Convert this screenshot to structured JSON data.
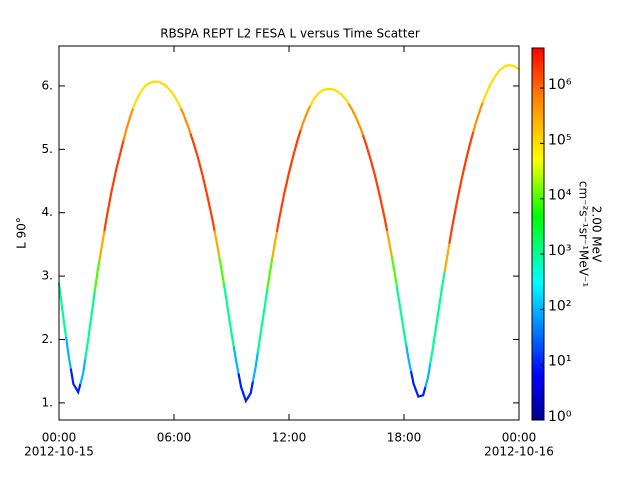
{
  "chart_data": {
    "type": "scatter",
    "title": "RBSPA REPT L2 FESA L versus Time Scatter",
    "y_label": "L 90°",
    "colorbar_label": [
      "2.00 MeV",
      "cm⁻²s⁻¹sr⁻¹MeV⁻¹"
    ],
    "x": [
      0,
      0.25,
      0.5,
      0.75,
      1,
      1.25,
      1.5,
      1.75,
      2,
      2.25,
      2.5,
      2.75,
      3,
      3.25,
      3.5,
      3.75,
      4,
      4.25,
      4.5,
      4.75,
      5,
      5.25,
      5.5,
      5.75,
      6,
      6.25,
      6.5,
      6.75,
      7,
      7.25,
      7.5,
      7.75,
      8,
      8.25,
      8.5,
      8.75,
      9,
      9.25,
      9.5,
      9.75,
      10,
      10.25,
      10.5,
      10.75,
      11,
      11.25,
      11.5,
      11.75,
      12,
      12.25,
      12.5,
      12.75,
      13,
      13.25,
      13.5,
      13.75,
      14,
      14.25,
      14.5,
      14.75,
      15,
      15.25,
      15.5,
      15.75,
      16,
      16.25,
      16.5,
      16.75,
      17,
      17.25,
      17.5,
      17.75,
      18,
      18.25,
      18.5,
      18.75,
      19,
      19.25,
      19.5,
      19.75,
      20,
      20.25,
      20.5,
      20.75,
      21,
      21.25,
      21.5,
      21.75,
      22,
      22.25,
      22.5,
      22.75,
      23,
      23.25,
      23.5,
      23.75,
      24
    ],
    "values": [
      2.88,
      2.3,
      1.75,
      1.3,
      1.17,
      1.45,
      1.95,
      2.5,
      3.05,
      3.5,
      3.95,
      4.35,
      4.7,
      5.0,
      5.3,
      5.55,
      5.75,
      5.9,
      6.0,
      6.05,
      6.07,
      6.06,
      6.02,
      5.95,
      5.85,
      5.72,
      5.55,
      5.35,
      5.12,
      4.87,
      4.58,
      4.25,
      3.9,
      3.5,
      3.07,
      2.6,
      2.1,
      1.65,
      1.25,
      1.03,
      1.15,
      1.55,
      2.05,
      2.55,
      3.05,
      3.5,
      3.92,
      4.3,
      4.63,
      4.93,
      5.2,
      5.43,
      5.62,
      5.77,
      5.87,
      5.93,
      5.95,
      5.95,
      5.92,
      5.86,
      5.77,
      5.65,
      5.5,
      5.32,
      5.1,
      4.85,
      4.57,
      4.25,
      3.9,
      3.5,
      3.08,
      2.6,
      2.12,
      1.67,
      1.3,
      1.1,
      1.12,
      1.4,
      1.85,
      2.35,
      2.85,
      3.3,
      3.75,
      4.15,
      4.52,
      4.85,
      5.15,
      5.42,
      5.65,
      5.85,
      6.02,
      6.15,
      6.25,
      6.31,
      6.33,
      6.31,
      6.26
    ],
    "z": [
      1000,
      1000,
      100,
      10,
      10,
      100,
      1000,
      1000,
      10000,
      300000,
      2000000,
      2000000,
      2000000,
      2000000,
      500000,
      500000,
      100000,
      100000,
      100000,
      100000,
      100000,
      100000,
      100000,
      100000,
      100000,
      100000,
      500000,
      500000,
      2000000,
      2000000,
      2000000,
      2000000,
      2000000,
      300000,
      10000,
      1000,
      1000,
      100,
      10,
      10,
      10,
      100,
      1000,
      1000,
      10000,
      300000,
      2000000,
      2000000,
      2000000,
      2000000,
      2000000,
      500000,
      500000,
      100000,
      100000,
      100000,
      100000,
      100000,
      100000,
      100000,
      100000,
      500000,
      500000,
      500000,
      2000000,
      2000000,
      2000000,
      2000000,
      2000000,
      300000,
      10000,
      1000,
      1000,
      100,
      10,
      10,
      10,
      100,
      1000,
      1000,
      1000,
      300000,
      2000000,
      2000000,
      2000000,
      2000000,
      2000000,
      500000,
      500000,
      100000,
      100000,
      100000,
      100000,
      100000,
      100000,
      100000,
      100000
    ],
    "xlim": [
      0,
      24
    ],
    "xticks": [
      {
        "value": 0,
        "label": "00:00"
      },
      {
        "value": 6,
        "label": "06:00"
      },
      {
        "value": 12,
        "label": "12:00"
      },
      {
        "value": 18,
        "label": "18:00"
      },
      {
        "value": 24,
        "label": "00:00"
      }
    ],
    "xtick_dates": [
      {
        "value": 0,
        "label": "2012-10-15"
      },
      {
        "value": 24,
        "label": "2012-10-16"
      }
    ],
    "ylim": [
      0.73,
      6.63
    ],
    "yticks": [
      {
        "value": 1,
        "label": "1."
      },
      {
        "value": 2,
        "label": "2."
      },
      {
        "value": 3,
        "label": "3."
      },
      {
        "value": 4,
        "label": "4."
      },
      {
        "value": 5,
        "label": "5."
      },
      {
        "value": 6,
        "label": "6."
      }
    ],
    "zlim": [
      1,
      5300000
    ],
    "zlog": true,
    "zticks": [
      {
        "value": 1,
        "label": "10⁰"
      },
      {
        "value": 10,
        "label": "10¹"
      },
      {
        "value": 100,
        "label": "10²"
      },
      {
        "value": 1000,
        "label": "10³"
      },
      {
        "value": 10000,
        "label": "10⁴"
      },
      {
        "value": 100000,
        "label": "10⁵"
      },
      {
        "value": 1000000,
        "label": "10⁶"
      }
    ]
  }
}
